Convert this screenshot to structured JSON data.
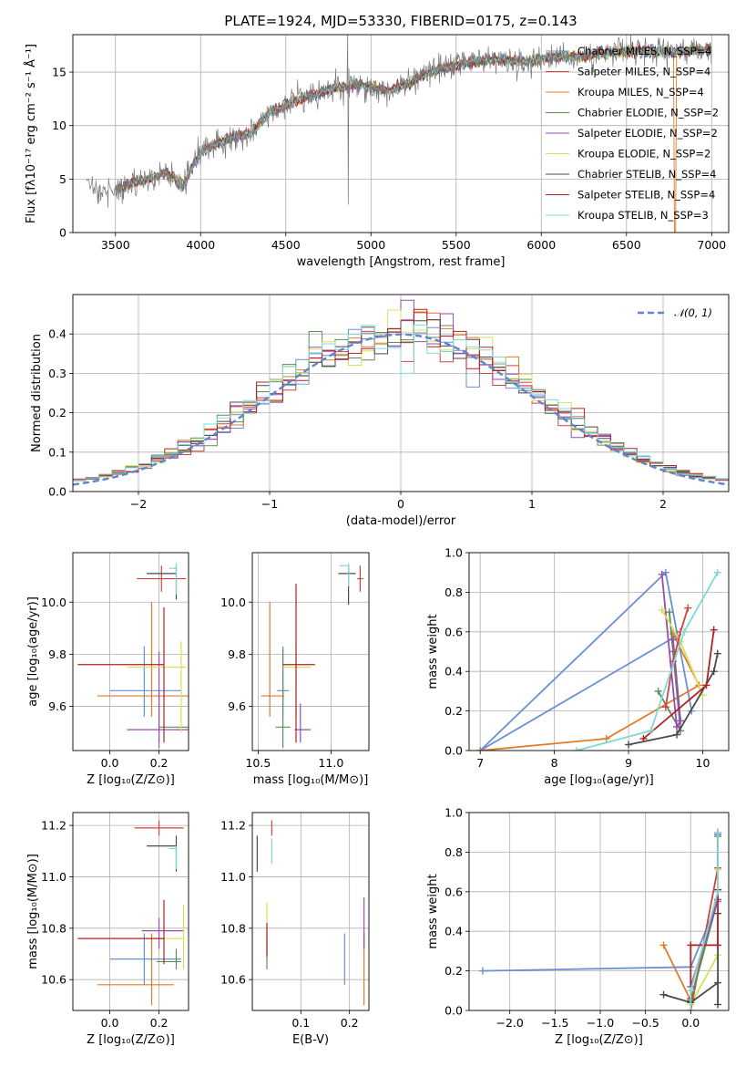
{
  "figure_title": "PLATE=1924, MJD=53330, FIBERID=0175, z=0.143",
  "series_colors": [
    "#6a8fd6",
    "#d0443e",
    "#e07b2a",
    "#5a8f5a",
    "#9a4ab5",
    "#d8e05a",
    "#4a4a4a",
    "#b52020",
    "#7fd8d8"
  ],
  "chart_data": [
    {
      "id": "spectrum",
      "type": "line",
      "xlabel": "wavelength [Angstrom, rest frame]",
      "ylabel": "Flux [fλ10⁻¹⁷ erg cm⁻² s⁻¹ Å⁻¹]",
      "xlim": [
        3250,
        7100
      ],
      "ylim": [
        0,
        18.5
      ],
      "xticks": [
        3500,
        4000,
        4500,
        5000,
        5500,
        6000,
        6500,
        7000
      ],
      "yticks": [
        0,
        5,
        10,
        15
      ],
      "legend_position": "top-right",
      "continuum": {
        "x": [
          3330,
          3400,
          3500,
          3600,
          3700,
          3800,
          3900,
          3950,
          4000,
          4100,
          4200,
          4300,
          4400,
          4500,
          4600,
          4700,
          4800,
          4860,
          4900,
          5000,
          5100,
          5200,
          5300,
          5400,
          5500,
          5600,
          5700,
          5800,
          5900,
          6000,
          6100,
          6200,
          6300,
          6400,
          6500,
          6600,
          6700,
          6800,
          6900,
          7000
        ],
        "y": [
          4.4,
          4.1,
          3.9,
          4.6,
          5.0,
          5.6,
          4.3,
          6.2,
          7.5,
          8.4,
          9.0,
          9.4,
          11.2,
          11.9,
          12.6,
          13.0,
          13.6,
          13.5,
          13.9,
          13.6,
          13.3,
          13.8,
          14.7,
          15.3,
          15.6,
          15.9,
          16.2,
          16.1,
          16.0,
          16.3,
          16.5,
          16.4,
          16.6,
          16.8,
          16.9,
          17.0,
          17.0,
          16.9,
          17.0,
          17.2
        ]
      },
      "series": [
        {
          "name": "Chabrier MILES, N_SSP=4"
        },
        {
          "name": "Salpeter MILES, N_SSP=4"
        },
        {
          "name": "Kroupa MILES, N_SSP=4"
        },
        {
          "name": "Chabrier ELODIE, N_SSP=2"
        },
        {
          "name": "Salpeter ELODIE, N_SSP=2"
        },
        {
          "name": "Kroupa ELODIE, N_SSP=2"
        },
        {
          "name": "Chabrier STELIB, N_SSP=4"
        },
        {
          "name": "Salpeter STELIB, N_SSP=4"
        },
        {
          "name": "Kroupa STELIB, N_SSP=3"
        }
      ]
    },
    {
      "id": "residuals",
      "type": "step",
      "xlabel": "(data-model)/error",
      "ylabel": "Normed distribution",
      "xlim": [
        -2.5,
        2.5
      ],
      "ylim": [
        0,
        0.5
      ],
      "xticks": [
        -2,
        -1,
        0,
        1,
        2
      ],
      "yticks": [
        0.0,
        0.1,
        0.2,
        0.3,
        0.4
      ],
      "legend_label": "𝒩(0, 1)",
      "legend_position": "top-right"
    },
    {
      "id": "age_vs_Z",
      "type": "errorbar",
      "xlabel": "Z [log₁₀(Z/Z⊙)]",
      "ylabel": "age  [log₁₀(age/yr)]",
      "xlim": [
        -0.15,
        0.32
      ],
      "ylim": [
        9.43,
        10.19
      ],
      "xticks": [
        0.0,
        0.2
      ],
      "yticks": [
        9.6,
        9.8,
        10.0
      ],
      "points": [
        {
          "x": 0.14,
          "y": 9.66,
          "xerr": [
            0.14,
            0.15
          ],
          "yerr": [
            0.1,
            0.17
          ],
          "c": 0
        },
        {
          "x": 0.21,
          "y": 10.09,
          "xerr": [
            0.1,
            0.1
          ],
          "yerr": [
            0.05,
            0.05
          ],
          "c": 1
        },
        {
          "x": 0.17,
          "y": 9.64,
          "xerr": [
            0.22,
            0.27
          ],
          "yerr": [
            0.08,
            0.36
          ],
          "c": 2
        },
        {
          "x": 0.2,
          "y": 9.52,
          "xerr": [
            0.0,
            0.26
          ],
          "yerr": [
            0.08,
            0.14
          ],
          "c": 3
        },
        {
          "x": 0.2,
          "y": 9.51,
          "xerr": [
            0.13,
            0.3
          ],
          "yerr": [
            0.05,
            0.3
          ],
          "c": 4
        },
        {
          "x": 0.29,
          "y": 9.75,
          "xerr": [
            0.22,
            0.02
          ],
          "yerr": [
            0.25,
            0.1
          ],
          "c": 5
        },
        {
          "x": 0.27,
          "y": 10.11,
          "xerr": [
            0.12,
            0.0
          ],
          "yerr": [
            0.1,
            0.03
          ],
          "c": 6
        },
        {
          "x": 0.22,
          "y": 9.76,
          "xerr": [
            0.35,
            0.0
          ],
          "yerr": [
            0.3,
            0.22
          ],
          "c": 7
        },
        {
          "x": 0.27,
          "y": 10.13,
          "xerr": [
            0.03,
            0.0
          ],
          "yerr": [
            0.1,
            0.02
          ],
          "c": 8
        }
      ]
    },
    {
      "id": "age_vs_mass",
      "type": "errorbar",
      "xlabel": "mass [log₁₀(M/M⊙)]",
      "ylabel": "",
      "xlim": [
        10.46,
        11.26
      ],
      "ylim": [
        9.43,
        10.19
      ],
      "xticks": [
        10.5,
        11.0
      ],
      "yticks": [
        9.6,
        9.8,
        10.0
      ],
      "points": [
        {
          "x": 10.67,
          "y": 9.66,
          "xerr": [
            0.04,
            0.04
          ],
          "yerr": [
            0.1,
            0.17
          ],
          "c": 0
        },
        {
          "x": 11.2,
          "y": 10.09,
          "xerr": [
            0.02,
            0.02
          ],
          "yerr": [
            0.05,
            0.05
          ],
          "c": 1
        },
        {
          "x": 10.58,
          "y": 9.64,
          "xerr": [
            0.06,
            0.1
          ],
          "yerr": [
            0.08,
            0.36
          ],
          "c": 2
        },
        {
          "x": 10.67,
          "y": 9.52,
          "xerr": [
            0.05,
            0.05
          ],
          "yerr": [
            0.08,
            0.3
          ],
          "c": 3
        },
        {
          "x": 10.79,
          "y": 9.51,
          "xerr": [
            0.04,
            0.07
          ],
          "yerr": [
            0.05,
            0.1
          ],
          "c": 4
        },
        {
          "x": 10.76,
          "y": 9.75,
          "xerr": [
            0.09,
            0.1
          ],
          "yerr": [
            0.2,
            0.1
          ],
          "c": 5
        },
        {
          "x": 11.12,
          "y": 10.11,
          "xerr": [
            0.07,
            0.05
          ],
          "yerr": [
            0.12,
            0.03
          ],
          "c": 6
        },
        {
          "x": 10.76,
          "y": 9.76,
          "xerr": [
            0.09,
            0.13
          ],
          "yerr": [
            0.3,
            0.31
          ],
          "c": 7
        },
        {
          "x": 11.12,
          "y": 10.14,
          "xerr": [
            0.06,
            0.0
          ],
          "yerr": [
            0.08,
            0.01
          ],
          "c": 8
        }
      ]
    },
    {
      "id": "massweight_vs_age",
      "type": "line",
      "xlabel": "age  [log₁₀(age/yr)]",
      "ylabel": "mass weight",
      "xlim": [
        6.85,
        10.35
      ],
      "ylim": [
        0,
        1
      ],
      "xticks": [
        7,
        8,
        9,
        10
      ],
      "yticks": [
        0.0,
        0.2,
        0.4,
        0.6,
        0.8,
        1.0
      ],
      "series": [
        {
          "c": 0,
          "x": [
            9.85,
            9.5,
            7.0,
            9.65
          ],
          "y": [
            0.2,
            0.9,
            0.0,
            0.58
          ]
        },
        {
          "c": 2,
          "x": [
            7.0,
            8.7,
            9.95,
            9.6
          ],
          "y": [
            0.0,
            0.06,
            0.33,
            0.59
          ]
        },
        {
          "c": 3,
          "x": [
            9.4,
            9.7,
            9.6,
            9.55
          ],
          "y": [
            0.3,
            0.1,
            0.5,
            0.7
          ]
        },
        {
          "c": 4,
          "x": [
            9.45,
            9.65,
            9.7,
            9.6
          ],
          "y": [
            0.89,
            0.12,
            0.15,
            0.56
          ]
        },
        {
          "c": 5,
          "x": [
            9.45,
            9.7,
            10.0
          ],
          "y": [
            0.71,
            0.55,
            0.28
          ]
        },
        {
          "c": 1,
          "x": [
            9.5,
            9.6,
            9.7,
            9.8
          ],
          "y": [
            0.22,
            0.45,
            0.6,
            0.72
          ]
        },
        {
          "c": 6,
          "x": [
            9.0,
            9.65,
            10.15,
            10.2
          ],
          "y": [
            0.03,
            0.08,
            0.4,
            0.49
          ]
        },
        {
          "c": 7,
          "x": [
            9.2,
            10.05,
            10.15
          ],
          "y": [
            0.06,
            0.33,
            0.61
          ]
        },
        {
          "c": 8,
          "x": [
            8.3,
            9.3,
            9.75,
            10.2
          ],
          "y": [
            0.0,
            0.1,
            0.6,
            0.9
          ]
        }
      ]
    },
    {
      "id": "mass_vs_Z",
      "type": "errorbar",
      "xlabel": "Z [log₁₀(Z/Z⊙)]",
      "ylabel": "mass [log₁₀(M/M⊙)]",
      "xlim": [
        -0.15,
        0.32
      ],
      "ylim": [
        10.48,
        11.25
      ],
      "xticks": [
        0.0,
        0.2
      ],
      "yticks": [
        10.6,
        10.8,
        11.0,
        11.2
      ],
      "points": [
        {
          "x": 0.14,
          "y": 10.68,
          "xerr": [
            0.14,
            0.15
          ],
          "yerr": [
            0.1,
            0.1
          ],
          "c": 0
        },
        {
          "x": 0.2,
          "y": 11.19,
          "xerr": [
            0.1,
            0.1
          ],
          "yerr": [
            0.03,
            0.03
          ],
          "c": 1
        },
        {
          "x": 0.17,
          "y": 10.58,
          "xerr": [
            0.22,
            0.09
          ],
          "yerr": [
            0.08,
            0.2
          ],
          "c": 2
        },
        {
          "x": 0.27,
          "y": 10.67,
          "xerr": [
            0.08,
            0.02
          ],
          "yerr": [
            0.03,
            0.05
          ],
          "c": 3
        },
        {
          "x": 0.2,
          "y": 10.79,
          "xerr": [
            0.07,
            0.1
          ],
          "yerr": [
            0.07,
            0.05
          ],
          "c": 4
        },
        {
          "x": 0.3,
          "y": 10.76,
          "xerr": [
            0.15,
            0.0
          ],
          "yerr": [
            0.12,
            0.13
          ],
          "c": 5
        },
        {
          "x": 0.27,
          "y": 11.12,
          "xerr": [
            0.12,
            0.0
          ],
          "yerr": [
            0.1,
            0.04
          ],
          "c": 6
        },
        {
          "x": 0.22,
          "y": 10.76,
          "xerr": [
            0.35,
            0.0
          ],
          "yerr": [
            0.1,
            0.15
          ],
          "c": 7
        },
        {
          "x": 0.27,
          "y": 11.11,
          "xerr": [
            0.03,
            0.0
          ],
          "yerr": [
            0.08,
            0.01
          ],
          "c": 8
        }
      ]
    },
    {
      "id": "mass_vs_EBV",
      "type": "errorbar",
      "xlabel": "E(B-V)",
      "ylabel": "",
      "xlim": [
        0.0,
        0.24
      ],
      "ylim": [
        10.48,
        11.25
      ],
      "xticks": [
        0.1,
        0.2
      ],
      "yticks": [
        10.6,
        10.8,
        11.0,
        11.2
      ],
      "points": [
        {
          "x": 0.19,
          "y": 10.68,
          "xerr": [
            0.0,
            0.0
          ],
          "yerr": [
            0.1,
            0.1
          ],
          "c": 0
        },
        {
          "x": 0.04,
          "y": 11.19,
          "xerr": [
            0.0,
            0.0
          ],
          "yerr": [
            0.03,
            0.03
          ],
          "c": 1
        },
        {
          "x": 0.23,
          "y": 10.58,
          "xerr": [
            0.0,
            0.0
          ],
          "yerr": [
            0.08,
            0.2
          ],
          "c": 2
        },
        {
          "x": 0.03,
          "y": 10.7,
          "xerr": [
            0.0,
            0.0
          ],
          "yerr": [
            0.06,
            0.06
          ],
          "c": 3
        },
        {
          "x": 0.23,
          "y": 10.79,
          "xerr": [
            0.0,
            0.0
          ],
          "yerr": [
            0.07,
            0.13
          ],
          "c": 4
        },
        {
          "x": 0.03,
          "y": 10.8,
          "xerr": [
            0.0,
            0.0
          ],
          "yerr": [
            0.05,
            0.1
          ],
          "c": 5
        },
        {
          "x": 0.01,
          "y": 11.09,
          "xerr": [
            0.0,
            0.0
          ],
          "yerr": [
            0.07,
            0.07
          ],
          "c": 6
        },
        {
          "x": 0.03,
          "y": 10.76,
          "xerr": [
            0.0,
            0.0
          ],
          "yerr": [
            0.07,
            0.06
          ],
          "c": 7
        },
        {
          "x": 0.04,
          "y": 11.1,
          "xerr": [
            0.0,
            0.0
          ],
          "yerr": [
            0.05,
            0.05
          ],
          "c": 8
        }
      ]
    },
    {
      "id": "massweight_vs_Z",
      "type": "line",
      "xlabel": "Z [log₁₀(Z/Z⊙)]",
      "ylabel": "mass weight",
      "xlim": [
        -2.45,
        0.42
      ],
      "ylim": [
        0,
        1
      ],
      "xticks": [
        -2.0,
        -1.5,
        -1.0,
        -0.5,
        0.0
      ],
      "yticks": [
        0.0,
        0.2,
        0.4,
        0.6,
        0.8,
        1.0
      ],
      "series": [
        {
          "c": 0,
          "x": [
            -2.3,
            -0.0,
            0.3,
            0.3
          ],
          "y": [
            0.2,
            0.22,
            0.55,
            0.9
          ]
        },
        {
          "c": 2,
          "x": [
            -0.3,
            0.0,
            0.3,
            0.3
          ],
          "y": [
            0.33,
            0.05,
            0.6,
            0.6
          ]
        },
        {
          "c": 1,
          "x": [
            -0.0,
            0.3,
            0.3
          ],
          "y": [
            0.0,
            0.72,
            0.9
          ]
        },
        {
          "c": 3,
          "x": [
            0.0,
            0.3,
            0.3
          ],
          "y": [
            0.05,
            0.56,
            0.88
          ]
        },
        {
          "c": 4,
          "x": [
            -0.0,
            0.3,
            0.3
          ],
          "y": [
            0.12,
            0.56,
            0.89
          ]
        },
        {
          "c": 5,
          "x": [
            0.0,
            0.3,
            0.3
          ],
          "y": [
            0.03,
            0.28,
            0.71
          ]
        },
        {
          "c": 6,
          "x": [
            -0.3,
            0.0,
            0.3,
            0.3,
            0.3
          ],
          "y": [
            0.08,
            0.04,
            0.14,
            0.49,
            0.03
          ]
        },
        {
          "c": 7,
          "x": [
            0.0,
            0.0,
            0.3,
            0.3
          ],
          "y": [
            0.06,
            0.33,
            0.33,
            0.61
          ]
        },
        {
          "c": 8,
          "x": [
            -0.0,
            0.0,
            0.3,
            0.3
          ],
          "y": [
            0.0,
            0.1,
            0.6,
            0.9
          ]
        }
      ]
    }
  ]
}
